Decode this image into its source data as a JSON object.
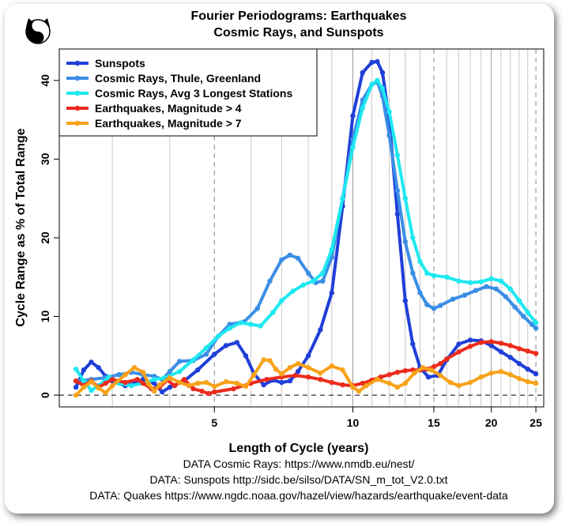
{
  "chart_data": {
    "type": "line",
    "title": "Fourier Periodograms: Earthquakes",
    "subtitle": "Cosmic Rays, and Sunspots",
    "xlabel": "Length of Cycle (years)",
    "ylabel": "Cycle Range as % of Total Range",
    "x_scale": "log",
    "xlim": [
      2.3,
      26
    ],
    "ylim": [
      -1.5,
      44
    ],
    "x_ticks": [
      5,
      10,
      15,
      20,
      25
    ],
    "y_ticks": [
      0,
      10,
      20,
      30,
      40
    ],
    "grid": "vertical lines at each year, dashed at 5, 15, 25",
    "legend_position": "top-left",
    "series": [
      {
        "name": "Sunspots",
        "color": "#1f3fd8",
        "points": [
          [
            2.5,
            1.0
          ],
          [
            2.6,
            3.2
          ],
          [
            2.7,
            4.2
          ],
          [
            2.8,
            3.5
          ],
          [
            2.9,
            2.4
          ],
          [
            3.0,
            1.8
          ],
          [
            3.2,
            1.2
          ],
          [
            3.4,
            1.6
          ],
          [
            3.5,
            2.0
          ],
          [
            3.7,
            1.5
          ],
          [
            3.85,
            0.4
          ],
          [
            4.0,
            1.0
          ],
          [
            4.3,
            1.8
          ],
          [
            4.6,
            3.2
          ],
          [
            5.0,
            5.2
          ],
          [
            5.3,
            6.3
          ],
          [
            5.6,
            6.7
          ],
          [
            5.85,
            5.0
          ],
          [
            6.1,
            2.7
          ],
          [
            6.4,
            1.3
          ],
          [
            6.7,
            1.9
          ],
          [
            7.0,
            1.6
          ],
          [
            7.3,
            1.8
          ],
          [
            7.6,
            3.0
          ],
          [
            8.0,
            5.0
          ],
          [
            8.5,
            8.3
          ],
          [
            9.0,
            13.0
          ],
          [
            9.5,
            24.0
          ],
          [
            10.0,
            35.5
          ],
          [
            10.5,
            41.0
          ],
          [
            11.0,
            42.3
          ],
          [
            11.3,
            42.4
          ],
          [
            11.6,
            41.0
          ],
          [
            12.0,
            35.0
          ],
          [
            12.5,
            23.0
          ],
          [
            13.0,
            12.0
          ],
          [
            13.5,
            6.5
          ],
          [
            14.0,
            3.5
          ],
          [
            14.6,
            2.3
          ],
          [
            15.3,
            2.5
          ],
          [
            16.0,
            4.5
          ],
          [
            17.0,
            6.5
          ],
          [
            18.0,
            7.0
          ],
          [
            19.0,
            6.9
          ],
          [
            20.0,
            6.3
          ],
          [
            21.0,
            5.5
          ],
          [
            22.0,
            4.8
          ],
          [
            23.0,
            4.0
          ],
          [
            24.0,
            3.3
          ],
          [
            25.0,
            2.7
          ]
        ]
      },
      {
        "name": "Cosmic Rays, Thule, Greenland",
        "color": "#3b8ee6",
        "points": [
          [
            2.5,
            1.8
          ],
          [
            2.7,
            2.0
          ],
          [
            2.9,
            2.2
          ],
          [
            3.1,
            2.6
          ],
          [
            3.3,
            2.9
          ],
          [
            3.5,
            2.6
          ],
          [
            3.7,
            2.4
          ],
          [
            3.85,
            2.0
          ],
          [
            4.0,
            3.0
          ],
          [
            4.2,
            4.3
          ],
          [
            4.5,
            4.4
          ],
          [
            4.8,
            5.2
          ],
          [
            5.1,
            7.5
          ],
          [
            5.4,
            9.0
          ],
          [
            5.8,
            9.3
          ],
          [
            6.2,
            11.0
          ],
          [
            6.6,
            14.5
          ],
          [
            7.0,
            17.2
          ],
          [
            7.3,
            17.8
          ],
          [
            7.6,
            17.4
          ],
          [
            8.0,
            15.5
          ],
          [
            8.3,
            14.3
          ],
          [
            8.6,
            14.5
          ],
          [
            9.0,
            17.5
          ],
          [
            9.5,
            25.0
          ],
          [
            10.0,
            32.5
          ],
          [
            10.5,
            37.5
          ],
          [
            11.0,
            39.5
          ],
          [
            11.3,
            39.8
          ],
          [
            11.6,
            38.0
          ],
          [
            12.0,
            33.0
          ],
          [
            12.5,
            26.0
          ],
          [
            13.0,
            19.5
          ],
          [
            13.5,
            15.5
          ],
          [
            14.0,
            13.0
          ],
          [
            14.5,
            11.5
          ],
          [
            15.0,
            11.0
          ],
          [
            15.5,
            11.4
          ],
          [
            16.5,
            12.2
          ],
          [
            17.5,
            12.7
          ],
          [
            18.5,
            13.3
          ],
          [
            19.5,
            13.8
          ],
          [
            20.5,
            13.5
          ],
          [
            21.5,
            12.5
          ],
          [
            22.5,
            11.2
          ],
          [
            23.5,
            10.0
          ],
          [
            24.5,
            9.0
          ],
          [
            25.0,
            8.5
          ]
        ]
      },
      {
        "name": "Cosmic Rays, Avg 3 Longest Stations",
        "color": "#1ee8f0",
        "points": [
          [
            2.5,
            3.3
          ],
          [
            2.6,
            1.8
          ],
          [
            2.7,
            0.6
          ],
          [
            2.8,
            1.2
          ],
          [
            2.95,
            2.3
          ],
          [
            3.1,
            1.5
          ],
          [
            3.3,
            1.2
          ],
          [
            3.5,
            1.5
          ],
          [
            3.7,
            2.0
          ],
          [
            3.9,
            2.2
          ],
          [
            4.2,
            3.0
          ],
          [
            4.5,
            4.5
          ],
          [
            4.8,
            6.0
          ],
          [
            5.1,
            7.5
          ],
          [
            5.4,
            8.5
          ],
          [
            5.7,
            9.2
          ],
          [
            6.0,
            9.0
          ],
          [
            6.3,
            8.8
          ],
          [
            6.7,
            10.5
          ],
          [
            7.0,
            12.0
          ],
          [
            7.4,
            13.2
          ],
          [
            7.8,
            14.0
          ],
          [
            8.2,
            14.5
          ],
          [
            8.6,
            15.5
          ],
          [
            9.0,
            18.5
          ],
          [
            9.5,
            25.0
          ],
          [
            10.0,
            31.5
          ],
          [
            10.5,
            36.5
          ],
          [
            11.0,
            39.5
          ],
          [
            11.3,
            40.0
          ],
          [
            11.6,
            39.0
          ],
          [
            12.0,
            36.0
          ],
          [
            12.5,
            30.5
          ],
          [
            13.0,
            25.0
          ],
          [
            13.5,
            20.0
          ],
          [
            14.0,
            17.0
          ],
          [
            14.5,
            15.5
          ],
          [
            15.0,
            15.2
          ],
          [
            16.0,
            15.0
          ],
          [
            17.0,
            14.5
          ],
          [
            18.0,
            14.3
          ],
          [
            19.0,
            14.4
          ],
          [
            20.0,
            14.8
          ],
          [
            21.0,
            14.5
          ],
          [
            22.0,
            13.5
          ],
          [
            23.0,
            12.0
          ],
          [
            24.0,
            10.5
          ],
          [
            25.0,
            9.2
          ]
        ]
      },
      {
        "name": "Earthquakes, Magnitude > 4",
        "color": "#ec2b1c",
        "points": [
          [
            2.5,
            1.8
          ],
          [
            2.6,
            1.2
          ],
          [
            2.7,
            1.8
          ],
          [
            2.8,
            1.0
          ],
          [
            2.9,
            1.5
          ],
          [
            3.0,
            2.0
          ],
          [
            3.2,
            1.6
          ],
          [
            3.4,
            2.0
          ],
          [
            3.5,
            1.5
          ],
          [
            3.65,
            0.8
          ],
          [
            3.8,
            1.0
          ],
          [
            3.95,
            1.9
          ],
          [
            4.1,
            1.2
          ],
          [
            4.3,
            2.0
          ],
          [
            4.5,
            0.8
          ],
          [
            4.7,
            0.5
          ],
          [
            4.85,
            0.2
          ],
          [
            5.0,
            0.4
          ],
          [
            5.5,
            0.8
          ],
          [
            6.0,
            1.5
          ],
          [
            6.5,
            2.0
          ],
          [
            7.0,
            2.3
          ],
          [
            7.5,
            2.5
          ],
          [
            8.0,
            2.3
          ],
          [
            8.5,
            2.0
          ],
          [
            9.0,
            1.6
          ],
          [
            9.5,
            1.3
          ],
          [
            10.0,
            1.2
          ],
          [
            10.5,
            1.5
          ],
          [
            11.0,
            1.9
          ],
          [
            11.5,
            2.3
          ],
          [
            12.0,
            2.6
          ],
          [
            12.5,
            2.9
          ],
          [
            13.0,
            3.1
          ],
          [
            13.5,
            3.2
          ],
          [
            14.0,
            3.2
          ],
          [
            14.5,
            3.3
          ],
          [
            15.0,
            3.6
          ],
          [
            15.5,
            4.0
          ],
          [
            16.0,
            4.6
          ],
          [
            17.0,
            5.5
          ],
          [
            18.0,
            6.2
          ],
          [
            19.0,
            6.7
          ],
          [
            20.0,
            6.8
          ],
          [
            21.0,
            6.6
          ],
          [
            22.0,
            6.3
          ],
          [
            23.0,
            5.9
          ],
          [
            24.0,
            5.6
          ],
          [
            25.0,
            5.3
          ]
        ]
      },
      {
        "name": "Earthquakes, Magnitude > 7",
        "color": "#f7a21a",
        "points": [
          [
            2.5,
            0.0
          ],
          [
            2.6,
            1.0
          ],
          [
            2.7,
            1.7
          ],
          [
            2.8,
            0.9
          ],
          [
            2.9,
            0.3
          ],
          [
            3.0,
            1.2
          ],
          [
            3.2,
            2.6
          ],
          [
            3.35,
            3.5
          ],
          [
            3.5,
            2.9
          ],
          [
            3.6,
            1.4
          ],
          [
            3.7,
            0.5
          ],
          [
            3.8,
            1.3
          ],
          [
            4.0,
            2.2
          ],
          [
            4.2,
            1.6
          ],
          [
            4.4,
            1.2
          ],
          [
            4.6,
            1.5
          ],
          [
            4.8,
            1.6
          ],
          [
            5.0,
            1.1
          ],
          [
            5.3,
            1.7
          ],
          [
            5.6,
            1.5
          ],
          [
            5.85,
            1.1
          ],
          [
            6.1,
            2.6
          ],
          [
            6.4,
            4.5
          ],
          [
            6.6,
            4.4
          ],
          [
            6.8,
            3.3
          ],
          [
            7.0,
            2.7
          ],
          [
            7.3,
            3.5
          ],
          [
            7.6,
            4.0
          ],
          [
            8.0,
            3.5
          ],
          [
            8.5,
            2.8
          ],
          [
            9.0,
            3.7
          ],
          [
            9.5,
            3.2
          ],
          [
            10.0,
            1.0
          ],
          [
            10.3,
            0.5
          ],
          [
            10.7,
            1.2
          ],
          [
            11.3,
            2.0
          ],
          [
            12.0,
            1.5
          ],
          [
            12.5,
            1.0
          ],
          [
            13.0,
            1.5
          ],
          [
            13.6,
            2.8
          ],
          [
            14.2,
            3.5
          ],
          [
            14.8,
            3.2
          ],
          [
            15.5,
            2.5
          ],
          [
            16.3,
            1.6
          ],
          [
            17.0,
            1.2
          ],
          [
            18.0,
            1.6
          ],
          [
            19.0,
            2.3
          ],
          [
            20.0,
            2.8
          ],
          [
            21.0,
            3.0
          ],
          [
            22.0,
            2.6
          ],
          [
            23.0,
            2.1
          ],
          [
            24.0,
            1.7
          ],
          [
            25.0,
            1.5
          ]
        ]
      }
    ]
  },
  "source_lines": [
    "DATA Cosmic Rays: https://www.nmdb.eu/nest/",
    "DATA: Sunspots http://sidc.be/silso/DATA/SN_m_tot_V2.0.txt",
    "DATA: Quakes https://www.ngdc.noaa.gov/hazel/view/hazards/earthquake/event-data"
  ],
  "logo_icon": "yin-yang-cat-icon"
}
